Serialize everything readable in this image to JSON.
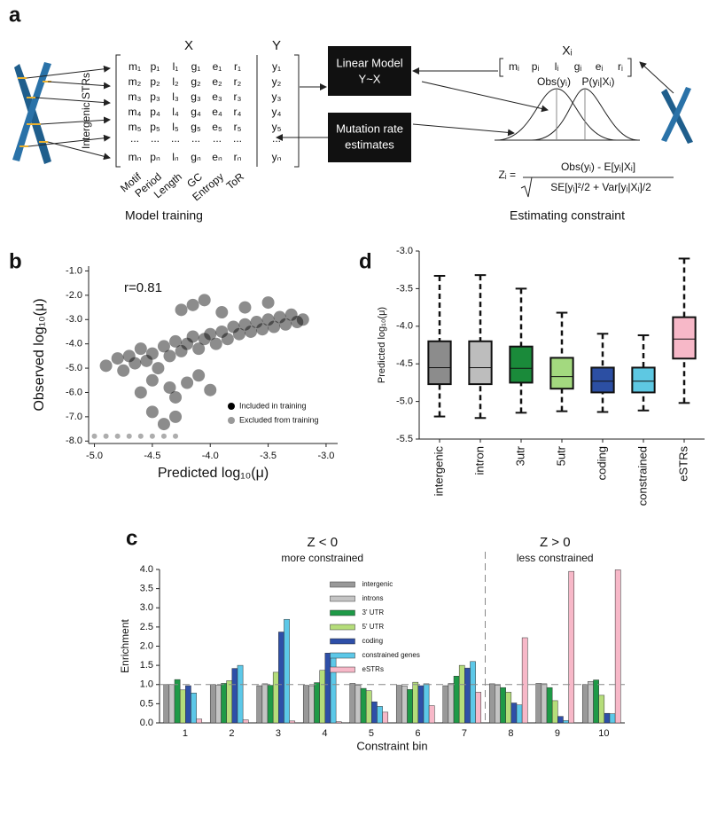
{
  "figure": {
    "panel_labels": [
      "a",
      "b",
      "c",
      "d"
    ]
  },
  "diagram": {
    "x_header": "X",
    "y_header": "Y",
    "side_label": "Intergenic STRs",
    "rows": [
      [
        "m₁",
        "p₁",
        "l₁",
        "g₁",
        "e₁",
        "r₁",
        "y₁"
      ],
      [
        "m₂",
        "p₂",
        "l₂",
        "g₂",
        "e₂",
        "r₂",
        "y₂"
      ],
      [
        "m₃",
        "p₃",
        "l₃",
        "g₃",
        "e₃",
        "r₃",
        "y₃"
      ],
      [
        "m₄",
        "p₄",
        "l₄",
        "g₄",
        "e₄",
        "r₄",
        "y₄"
      ],
      [
        "m₅",
        "p₅",
        "l₅",
        "g₅",
        "e₅",
        "r₅",
        "y₅"
      ],
      [
        "...",
        "...",
        "...",
        "...",
        "...",
        "...",
        "..."
      ],
      [
        "mₙ",
        "pₙ",
        "lₙ",
        "gₙ",
        "eₙ",
        "rₙ",
        "yₙ"
      ]
    ],
    "columns": [
      "Motif",
      "Period",
      "Length",
      "GC",
      "Entropy",
      "ToR"
    ],
    "caption_left": "Model training",
    "model_box": [
      "Linear Model",
      "Y~X"
    ],
    "rate_box": [
      "Mutation rate",
      "estimates"
    ],
    "xi_header": "Xᵢ",
    "xi_row": [
      "mᵢ",
      "pᵢ",
      "lᵢ",
      "gᵢ",
      "eᵢ",
      "rᵢ"
    ],
    "obs_label": "Obs(yᵢ)",
    "p_label": "P(yᵢ|Xᵢ)",
    "z_lhs": "Zᵢ =",
    "z_numerator": "Obs(yᵢ) - E[yᵢ|Xᵢ]",
    "z_denominator": "SE[yᵢ]²/2 + Var[yᵢ|Xᵢ]/2",
    "caption_right": "Estimating constraint"
  },
  "chart_data": [
    {
      "type": "scatter",
      "xlabel": "Predicted log₁₀(μ)",
      "ylabel": "Observed log₁₀(μ)",
      "annotation": "r=0.81",
      "xlim": [
        -5.05,
        -2.9
      ],
      "ylim": [
        -8.1,
        -0.8
      ],
      "xticks": [
        {
          "value": -5,
          "label": "-5.0"
        },
        -4.5,
        {
          "value": -4,
          "label": "-4.0"
        },
        -3.5,
        {
          "value": -3,
          "label": "-3.0"
        }
      ],
      "yticks": [
        {
          "value": -1,
          "label": "-1.0"
        },
        {
          "value": -2,
          "label": "-2.0"
        },
        {
          "value": -3,
          "label": "-3.0"
        },
        {
          "value": -4,
          "label": "-4.0"
        },
        {
          "value": -5,
          "label": "-5.0"
        },
        {
          "value": -6,
          "label": "-6.0"
        },
        {
          "value": -7,
          "label": "-7.0"
        },
        {
          "value": -8,
          "label": "-8.0"
        }
      ],
      "legend": "lower right",
      "series": [
        {
          "name": "Included in training",
          "color": "#000000",
          "x": [
            -4.9,
            -4.8,
            -4.75,
            -4.7,
            -4.65,
            -4.6,
            -4.55,
            -4.5,
            -4.45,
            -4.4,
            -4.35,
            -4.3,
            -4.25,
            -4.2,
            -4.15,
            -4.1,
            -4.05,
            -4.0,
            -3.95,
            -3.9,
            -3.85,
            -3.8,
            -3.75,
            -3.7,
            -3.65,
            -3.6,
            -3.55,
            -3.5,
            -3.45,
            -3.4,
            -3.35,
            -3.3,
            -3.25,
            -3.2,
            -4.6,
            -4.5,
            -4.4,
            -4.3,
            -4.2,
            -4.1,
            -4.0,
            -4.5,
            -4.35,
            -4.25,
            -4.15,
            -4.05,
            -3.9,
            -3.7,
            -3.5,
            -4.3
          ],
          "y": [
            -4.9,
            -4.6,
            -5.1,
            -4.5,
            -4.8,
            -4.2,
            -4.7,
            -4.4,
            -5.0,
            -4.1,
            -4.5,
            -3.9,
            -4.3,
            -4.0,
            -3.7,
            -4.2,
            -3.8,
            -3.6,
            -4.0,
            -3.5,
            -3.8,
            -3.3,
            -3.6,
            -3.2,
            -3.5,
            -3.1,
            -3.4,
            -3.0,
            -3.3,
            -2.9,
            -3.2,
            -2.8,
            -3.1,
            -3.0,
            -6.0,
            -6.8,
            -7.3,
            -6.2,
            -5.6,
            -5.3,
            -5.9,
            -5.5,
            -5.8,
            -2.6,
            -2.4,
            -2.2,
            -2.7,
            -2.5,
            -2.3,
            -7.0
          ]
        },
        {
          "name": "Excluded from training",
          "color": "#999999",
          "x": [
            -5.0,
            -4.9,
            -4.8,
            -4.7,
            -4.6,
            -4.5,
            -4.4,
            -4.3
          ],
          "y": [
            -7.8,
            -7.8,
            -7.8,
            -7.8,
            -7.8,
            -7.8,
            -7.8,
            -7.8
          ]
        }
      ]
    },
    {
      "type": "box",
      "ylabel": "Predicted log₁₀(μ)",
      "categories": [
        "intergenic",
        "intron",
        "3utr",
        "5utr",
        "coding",
        "constrained",
        "eSTRs"
      ],
      "colors": [
        "#8c8c8c",
        "#bdbdbd",
        "#1a8a3a",
        "#a3d97f",
        "#2c4fa3",
        "#5ec8e2",
        "#f7b8c8"
      ],
      "boxes": [
        {
          "whislo": -5.2,
          "q1": -4.77,
          "med": -4.55,
          "q3": -4.2,
          "whishi": -3.33
        },
        {
          "whislo": -5.22,
          "q1": -4.77,
          "med": -4.55,
          "q3": -4.2,
          "whishi": -3.32
        },
        {
          "whislo": -5.15,
          "q1": -4.75,
          "med": -4.56,
          "q3": -4.27,
          "whishi": -3.5
        },
        {
          "whislo": -5.13,
          "q1": -4.83,
          "med": -4.67,
          "q3": -4.42,
          "whishi": -3.82
        },
        {
          "whislo": -5.14,
          "q1": -4.88,
          "med": -4.73,
          "q3": -4.55,
          "whishi": -4.1
        },
        {
          "whislo": -5.12,
          "q1": -4.88,
          "med": -4.73,
          "q3": -4.55,
          "whishi": -4.12
        },
        {
          "whislo": -5.02,
          "q1": -4.43,
          "med": -4.17,
          "q3": -3.88,
          "whishi": -3.1
        }
      ],
      "ylim": [
        -5.5,
        -3.0
      ],
      "yticks": [
        {
          "value": -3,
          "label": "-3.0"
        },
        -3.5,
        {
          "value": -4,
          "label": "-4.0"
        },
        -4.5,
        {
          "value": -5,
          "label": "-5.0"
        },
        -5.5
      ]
    },
    {
      "type": "bar",
      "xlabel": "Constraint bin",
      "ylabel": "Enrichment",
      "annotations": [
        "Z < 0",
        "more constrained",
        "Z > 0",
        "less constrained"
      ],
      "categories": [
        "1",
        "2",
        "3",
        "4",
        "5",
        "6",
        "7",
        "8",
        "9",
        "10"
      ],
      "ylim": [
        0,
        4
      ],
      "yticks": [
        {
          "value": 0,
          "label": "0.0"
        },
        0.5,
        {
          "value": 1,
          "label": "1.0"
        },
        1.5,
        {
          "value": 2,
          "label": "2.0"
        },
        2.5,
        {
          "value": 3,
          "label": "3.0"
        },
        3.5,
        {
          "value": 4,
          "label": "4.0"
        }
      ],
      "reference_line": 1,
      "legend": "upper center",
      "series": [
        {
          "name": "intergenic",
          "color": "#999999",
          "values": [
            1.0,
            1.0,
            0.97,
            0.98,
            1.03,
            0.98,
            0.97,
            1.02,
            1.03,
            1.0
          ]
        },
        {
          "name": "introns",
          "color": "#c4c4c4",
          "values": [
            1.0,
            0.98,
            1.02,
            0.97,
            0.98,
            0.96,
            1.03,
            0.98,
            1.02,
            1.08
          ]
        },
        {
          "name": "3' UTR",
          "color": "#1e9a47",
          "values": [
            1.13,
            1.03,
            0.98,
            1.05,
            0.9,
            0.87,
            1.22,
            0.92,
            0.92,
            1.12
          ]
        },
        {
          "name": "5' UTR",
          "color": "#b5dd7a",
          "values": [
            0.86,
            1.1,
            1.32,
            1.37,
            0.84,
            1.06,
            1.5,
            0.8,
            0.58,
            0.72
          ]
        },
        {
          "name": "coding",
          "color": "#2e4fa8",
          "values": [
            0.97,
            1.42,
            2.37,
            1.82,
            0.55,
            0.97,
            1.43,
            0.52,
            0.17,
            0.25
          ]
        },
        {
          "name": "constrained genes",
          "color": "#5cc8e8",
          "values": [
            0.78,
            1.5,
            2.7,
            1.8,
            0.43,
            1.02,
            1.6,
            0.47,
            0.06,
            0.24
          ]
        },
        {
          "name": "eSTRs",
          "color": "#f7b8c8",
          "values": [
            0.1,
            0.08,
            0.05,
            0.03,
            0.28,
            0.45,
            0.8,
            2.22,
            3.95,
            3.99
          ]
        }
      ]
    }
  ]
}
